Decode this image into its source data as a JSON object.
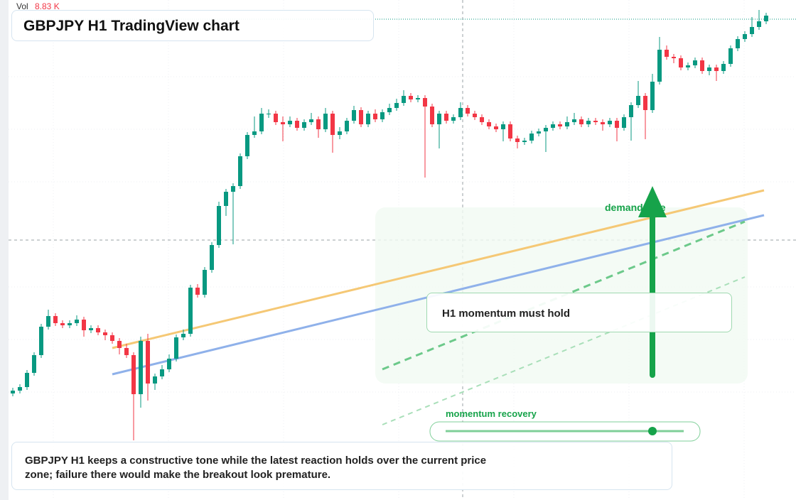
{
  "header": {
    "vol_label": "Vol",
    "vol_value": "8.83 K",
    "title": "GBPJPY H1 TradingView chart"
  },
  "chart_data": {
    "type": "candlestick",
    "open": [
      150,
      154,
      159,
      179,
      204,
      244,
      259,
      249,
      246,
      249,
      254,
      239,
      242,
      236,
      232,
      224,
      214,
      204,
      149,
      224,
      164,
      174,
      184,
      199,
      229,
      234,
      299,
      289,
      324,
      359,
      414,
      434,
      442,
      484,
      514,
      519,
      544,
      544,
      532,
      529,
      534,
      524,
      532,
      536,
      522,
      544,
      514,
      519,
      534,
      549,
      529,
      544,
      536,
      546,
      552,
      559,
      569,
      564,
      566,
      554,
      529,
      544,
      534,
      539,
      552,
      544,
      539,
      532,
      526,
      522,
      529,
      509,
      504,
      506,
      516,
      519,
      524,
      529,
      526,
      532,
      536,
      529,
      534,
      532,
      529,
      534,
      524,
      539,
      556,
      569,
      549,
      589,
      634,
      624,
      622,
      609,
      612,
      619,
      604,
      609,
      604,
      614,
      636,
      649,
      656,
      666,
      674
    ],
    "high": [
      158,
      163,
      183,
      208,
      248,
      268,
      263,
      253,
      253,
      260,
      258,
      246,
      246,
      240,
      236,
      228,
      220,
      208,
      230,
      234,
      178,
      190,
      205,
      233,
      240,
      303,
      304,
      328,
      363,
      420,
      438,
      446,
      488,
      518,
      540,
      552,
      550,
      548,
      540,
      540,
      538,
      536,
      545,
      540,
      552,
      548,
      525,
      538,
      555,
      553,
      548,
      550,
      550,
      558,
      565,
      577,
      573,
      570,
      570,
      558,
      548,
      548,
      543,
      560,
      556,
      548,
      543,
      536,
      530,
      533,
      533,
      513,
      510,
      520,
      523,
      528,
      533,
      533,
      540,
      545,
      540,
      538,
      538,
      536,
      538,
      538,
      543,
      560,
      590,
      573,
      600,
      652,
      640,
      628,
      626,
      616,
      623,
      623,
      613,
      613,
      618,
      640,
      653,
      660,
      680,
      690,
      686
    ],
    "low": [
      146,
      150,
      155,
      175,
      200,
      240,
      245,
      242,
      242,
      245,
      230,
      235,
      232,
      225,
      220,
      205,
      200,
      84,
      130,
      140,
      155,
      170,
      180,
      195,
      225,
      230,
      285,
      285,
      320,
      355,
      400,
      360,
      438,
      480,
      510,
      515,
      538,
      528,
      505,
      525,
      520,
      520,
      528,
      510,
      518,
      489,
      508,
      515,
      530,
      525,
      525,
      532,
      532,
      542,
      548,
      555,
      560,
      560,
      454,
      525,
      495,
      530,
      530,
      535,
      540,
      535,
      528,
      522,
      518,
      505,
      505,
      495,
      500,
      502,
      512,
      490,
      520,
      522,
      522,
      528,
      525,
      525,
      528,
      520,
      525,
      505,
      520,
      506,
      552,
      508,
      545,
      585,
      620,
      615,
      605,
      605,
      608,
      600,
      598,
      590,
      600,
      610,
      632,
      645,
      652,
      662,
      670
    ],
    "close": [
      154,
      159,
      179,
      204,
      244,
      259,
      249,
      246,
      249,
      254,
      239,
      242,
      236,
      232,
      224,
      214,
      204,
      149,
      224,
      164,
      174,
      184,
      199,
      229,
      234,
      299,
      289,
      324,
      359,
      414,
      434,
      442,
      484,
      514,
      519,
      544,
      544,
      532,
      529,
      534,
      524,
      532,
      536,
      522,
      544,
      514,
      519,
      534,
      549,
      529,
      544,
      536,
      546,
      552,
      559,
      569,
      564,
      566,
      554,
      529,
      544,
      534,
      539,
      552,
      544,
      539,
      532,
      526,
      522,
      529,
      509,
      504,
      506,
      516,
      519,
      524,
      529,
      526,
      532,
      536,
      529,
      534,
      532,
      529,
      534,
      524,
      539,
      556,
      569,
      549,
      589,
      634,
      624,
      622,
      609,
      612,
      619,
      604,
      609,
      604,
      614,
      636,
      649,
      656,
      666,
      674,
      682
    ],
    "ylim": [
      0,
      704
    ],
    "up_color": "#089981",
    "down_color": "#f23645"
  },
  "annotations": {
    "zone_label": "demand side",
    "momentum_box": "H1 momentum must hold",
    "slider_label": "momentum recovery",
    "note": "GBPJPY H1 keeps a constructive tone while the latest reaction holds over the current price zone; failure there would make the breakout look premature."
  }
}
